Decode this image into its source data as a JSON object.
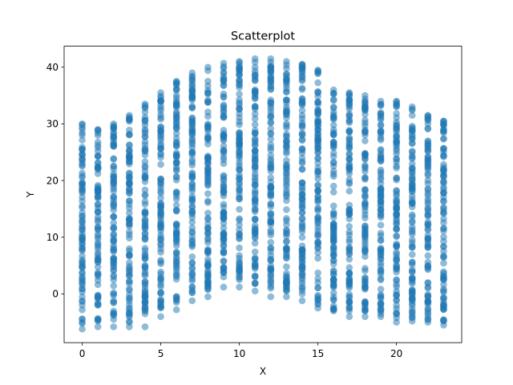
{
  "chart_data": {
    "type": "scatter",
    "title": "Scatterplot",
    "xlabel": "X",
    "ylabel": "Y",
    "xlim": [
      -1.15,
      24.15
    ],
    "ylim": [
      -8.6,
      43.7
    ],
    "x_ticks": [
      0,
      5,
      10,
      15,
      20
    ],
    "y_ticks": [
      0,
      10,
      20,
      30,
      40
    ],
    "grid": false,
    "legend": "none",
    "marker_color": "#1f77b4",
    "marker_alpha": 0.5,
    "columns": [
      {
        "x": 0,
        "y_min": -6.2,
        "y_max": 30.0,
        "outliers": [
          -5.2,
          -2.8
        ]
      },
      {
        "x": 1,
        "y_min": -5.8,
        "y_max": 29.0,
        "outliers": [
          -4.8,
          -2.0
        ]
      },
      {
        "x": 2,
        "y_min": -5.8,
        "y_max": 30.0,
        "outliers": [
          -4.5,
          -3.8,
          -1.5
        ]
      },
      {
        "x": 3,
        "y_min": -5.8,
        "y_max": 31.5,
        "outliers": [
          -5.0,
          -4.0,
          -2.5
        ]
      },
      {
        "x": 4,
        "y_min": -5.8,
        "y_max": 33.5,
        "outliers": [
          -3.5,
          -2.5
        ]
      },
      {
        "x": 5,
        "y_min": -4.0,
        "y_max": 35.5,
        "outliers": [
          -2.5,
          -1.2
        ]
      },
      {
        "x": 6,
        "y_min": -2.8,
        "y_max": 37.5,
        "outliers": [
          -1.5,
          -0.5
        ]
      },
      {
        "x": 7,
        "y_min": -1.2,
        "y_max": 39.0,
        "outliers": [
          0.2,
          1.2
        ]
      },
      {
        "x": 8,
        "y_min": -0.5,
        "y_max": 40.0,
        "outliers": [
          0.8,
          2.0
        ]
      },
      {
        "x": 9,
        "y_min": 1.2,
        "y_max": 40.7,
        "outliers": [
          3.0,
          4.5
        ]
      },
      {
        "x": 10,
        "y_min": 1.2,
        "y_max": 41.0,
        "outliers": [
          2.5,
          4.0
        ]
      },
      {
        "x": 11,
        "y_min": 0.5,
        "y_max": 41.5,
        "outliers": [
          1.8,
          3.2
        ]
      },
      {
        "x": 12,
        "y_min": -0.5,
        "y_max": 41.5,
        "outliers": [
          1.0,
          2.5
        ]
      },
      {
        "x": 13,
        "y_min": -0.5,
        "y_max": 41.0,
        "outliers": [
          0.5,
          1.8
        ]
      },
      {
        "x": 14,
        "y_min": -1.2,
        "y_max": 40.5,
        "outliers": [
          0.0,
          1.0
        ]
      },
      {
        "x": 15,
        "y_min": -2.5,
        "y_max": 39.5,
        "outliers": [
          -1.8,
          -0.5
        ]
      },
      {
        "x": 16,
        "y_min": -3.0,
        "y_max": 36.0,
        "outliers": [
          -2.8,
          -1.0
        ]
      },
      {
        "x": 17,
        "y_min": -4.0,
        "y_max": 35.5,
        "outliers": [
          -3.0,
          -1.5
        ]
      },
      {
        "x": 18,
        "y_min": -4.0,
        "y_max": 35.0,
        "outliers": [
          -3.0,
          -1.8
        ]
      },
      {
        "x": 19,
        "y_min": -4.0,
        "y_max": 34.0,
        "outliers": [
          -3.5,
          -1.8
        ]
      },
      {
        "x": 20,
        "y_min": -5.0,
        "y_max": 34.0,
        "outliers": [
          -4.2,
          -2.0
        ]
      },
      {
        "x": 21,
        "y_min": -4.8,
        "y_max": 33.0,
        "outliers": [
          -4.2,
          -2.0
        ]
      },
      {
        "x": 22,
        "y_min": -5.0,
        "y_max": 31.5,
        "outliers": [
          -4.5,
          -1.5
        ]
      },
      {
        "x": 23,
        "y_min": -5.5,
        "y_max": 30.5,
        "outliers": [
          -4.8,
          -2.0
        ]
      }
    ]
  }
}
